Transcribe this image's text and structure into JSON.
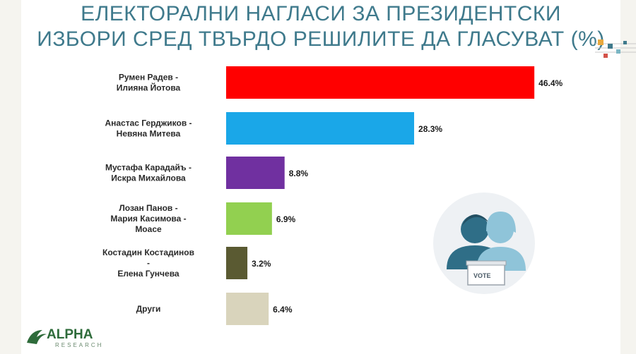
{
  "title": {
    "line1": "ЕЛЕКТОРАЛНИ НАГЛАСИ ЗА ПРЕЗИДЕНТСКИ",
    "line2": "ИЗБОРИ СРЕД ТВЪРДО РЕШИЛИТЕ ДА ГЛАСУВАТ (%)"
  },
  "logo": {
    "brand": "ALPHA",
    "sub": "RESEARCH",
    "color": "#2e6b3a"
  },
  "ballot_box": {
    "label": "VOTE",
    "icon": "voters-ballot-icon"
  },
  "colors": {
    "title": "#3f7a8c",
    "bars": [
      "#ff0000",
      "#1aa7e8",
      "#7030a0",
      "#92d050",
      "#5a5a32",
      "#d9d4bc"
    ]
  },
  "chart_data": {
    "type": "bar",
    "orientation": "horizontal",
    "categories": [
      [
        "Румен Радев -",
        "Илияна Йотова"
      ],
      [
        "Анастас Герджиков -",
        "Невяна Митева"
      ],
      [
        "Мустафа Карадайъ -",
        "Искра Михайлова"
      ],
      [
        "Лозан Панов -",
        "Мария Касимова -",
        "Моасе"
      ],
      [
        "Костадин Костадинов",
        "-",
        "Елена Гунчева"
      ],
      [
        "Други"
      ]
    ],
    "values": [
      46.4,
      28.3,
      8.8,
      6.9,
      3.2,
      6.4
    ],
    "value_labels": [
      "46.4%",
      "28.3%",
      "8.8%",
      "6.9%",
      "3.2%",
      "6.4%"
    ],
    "xlim": [
      0,
      50
    ],
    "grid": false,
    "legend": "none"
  }
}
